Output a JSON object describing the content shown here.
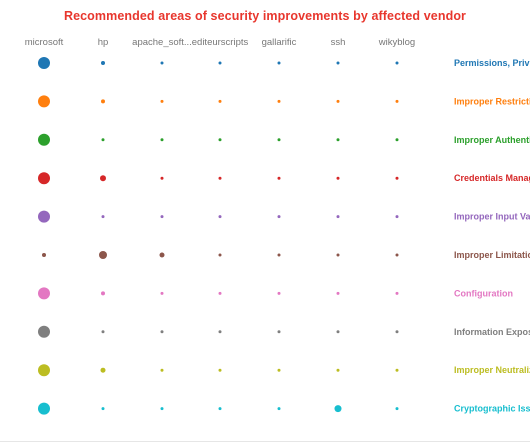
{
  "title": "Recommended areas of security improvements by affected vendor",
  "title_color": "#e8362d",
  "chart_data": {
    "type": "scatter",
    "title": "Recommended areas of security improvements by affected vendor",
    "vendors": [
      "microsoft",
      "hp",
      "apache_soft...",
      "editeurscripts",
      "gallarific",
      "ssh",
      "wikyblog"
    ],
    "leading_partial_vendor": "e",
    "categories": [
      {
        "name": "Permissions, Privile",
        "color": "#1f77b4",
        "sizes": [
          12,
          4,
          3,
          3,
          3,
          3,
          3
        ]
      },
      {
        "name": "Improper Restrictic",
        "color": "#ff7f0e",
        "sizes": [
          12,
          4,
          3,
          3,
          3,
          3,
          3
        ]
      },
      {
        "name": "Improper Authentic",
        "color": "#2ca02c",
        "sizes": [
          12,
          3,
          3,
          3,
          3,
          3,
          3
        ]
      },
      {
        "name": "Credentials Manag",
        "color": "#d62728",
        "sizes": [
          12,
          6,
          3,
          3,
          3,
          3,
          3
        ]
      },
      {
        "name": "Improper Input Val",
        "color": "#9467bd",
        "sizes": [
          12,
          3,
          3,
          3,
          3,
          3,
          3
        ]
      },
      {
        "name": "Improper Limitatio",
        "color": "#8c564b",
        "sizes": [
          4,
          8,
          5,
          3,
          3,
          3,
          3
        ]
      },
      {
        "name": "Configuration",
        "color": "#e377c2",
        "sizes": [
          12,
          4,
          3,
          3,
          3,
          3,
          3
        ]
      },
      {
        "name": "Information Expos",
        "color": "#7f7f7f",
        "sizes": [
          12,
          3,
          3,
          3,
          3,
          3,
          3
        ]
      },
      {
        "name": "Improper Neutraliz",
        "color": "#bcbd22",
        "sizes": [
          12,
          5,
          3,
          3,
          3,
          3,
          3
        ]
      },
      {
        "name": "Cryptographic Issu",
        "color": "#17becf",
        "sizes": [
          12,
          3,
          3,
          3,
          3,
          7,
          3
        ]
      }
    ]
  }
}
